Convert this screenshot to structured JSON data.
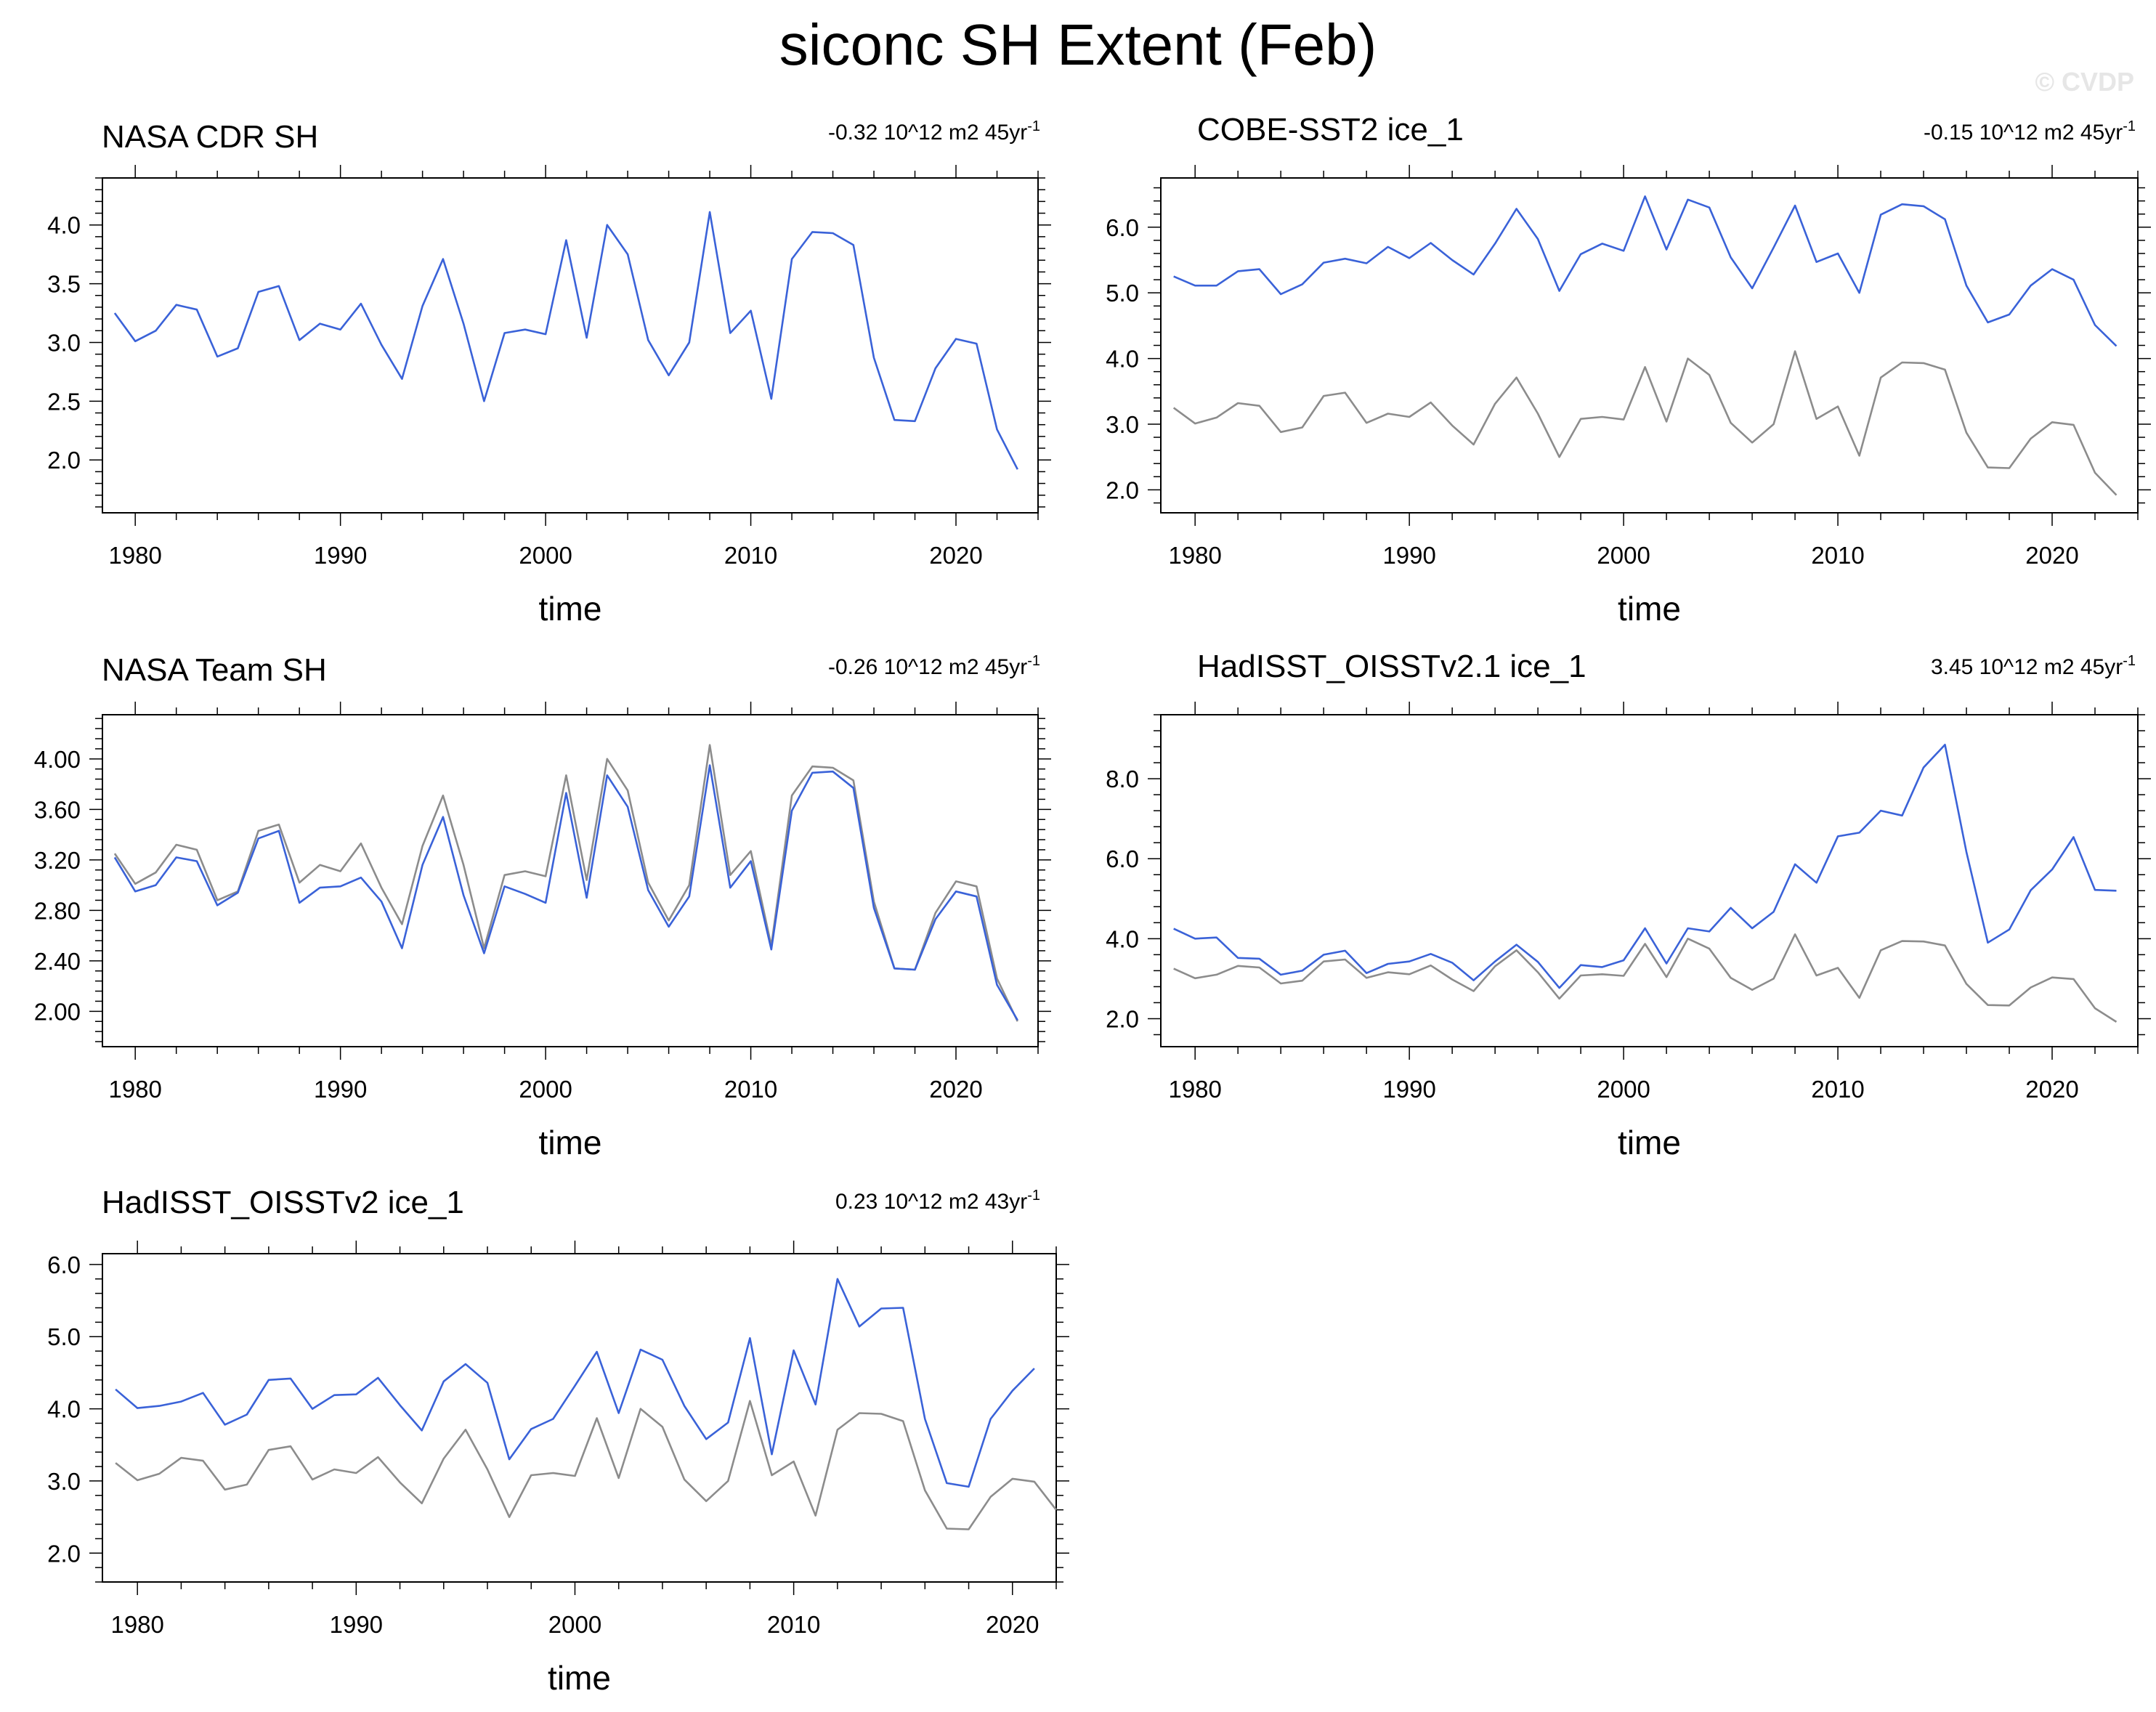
{
  "title": "siconc SH Extent (Feb)",
  "watermark": "© CVDP",
  "colors": {
    "model": "#3a62d8",
    "obs": "#8c8c8c",
    "axis": "#000000"
  },
  "chart_data": [
    {
      "type": "line",
      "title": "NASA CDR SH",
      "trend": {
        "value": "-0.32 10^12 m2 45yr",
        "sup": "-1"
      },
      "xlabel": "time",
      "xlim": [
        1978.4,
        2024
      ],
      "ylim": [
        1.55,
        4.4
      ],
      "xticks": [
        1980,
        1990,
        2000,
        2010,
        2020
      ],
      "yticks": [
        2.0,
        2.5,
        3.0,
        3.5,
        4.0
      ],
      "ytick_labels": [
        "2.0",
        "2.5",
        "3.0",
        "3.5",
        "4.0"
      ],
      "x_start": 1979,
      "series": [
        {
          "role": "model",
          "values": [
            3.25,
            3.01,
            3.1,
            3.32,
            3.28,
            2.88,
            2.95,
            3.43,
            3.48,
            3.02,
            3.16,
            3.11,
            3.33,
            2.98,
            2.69,
            3.31,
            3.71,
            3.16,
            2.5,
            3.08,
            3.11,
            3.07,
            3.87,
            3.04,
            4.0,
            3.75,
            3.02,
            2.72,
            3.0,
            4.11,
            3.08,
            3.27,
            2.52,
            3.71,
            3.94,
            3.93,
            3.83,
            2.87,
            2.34,
            2.33,
            2.78,
            3.03,
            2.99,
            2.26,
            1.92
          ]
        }
      ]
    },
    {
      "type": "line",
      "title": "COBE-SST2 ice_1",
      "trend": {
        "value": "-0.15 10^12 m2 45yr",
        "sup": "-1"
      },
      "xlabel": "time",
      "xlim": [
        1978.4,
        2024
      ],
      "ylim": [
        1.65,
        6.75
      ],
      "xticks": [
        1980,
        1990,
        2000,
        2010,
        2020
      ],
      "yticks": [
        2.0,
        3.0,
        4.0,
        5.0,
        6.0
      ],
      "ytick_labels": [
        "2.0",
        "3.0",
        "4.0",
        "5.0",
        "6.0"
      ],
      "x_start": 1979,
      "series": [
        {
          "role": "obs",
          "values": [
            3.25,
            3.01,
            3.1,
            3.32,
            3.28,
            2.88,
            2.95,
            3.43,
            3.48,
            3.02,
            3.16,
            3.11,
            3.33,
            2.98,
            2.69,
            3.31,
            3.71,
            3.16,
            2.5,
            3.08,
            3.11,
            3.07,
            3.87,
            3.04,
            4.0,
            3.75,
            3.02,
            2.72,
            3.0,
            4.11,
            3.08,
            3.27,
            2.52,
            3.71,
            3.94,
            3.93,
            3.83,
            2.87,
            2.34,
            2.33,
            2.78,
            3.03,
            2.99,
            2.26,
            1.92
          ]
        },
        {
          "role": "model",
          "values": [
            5.25,
            5.11,
            5.11,
            5.33,
            5.36,
            4.98,
            5.13,
            5.46,
            5.52,
            5.45,
            5.7,
            5.53,
            5.76,
            5.5,
            5.28,
            5.75,
            6.28,
            5.82,
            5.03,
            5.59,
            5.75,
            5.64,
            6.47,
            5.66,
            6.42,
            6.3,
            5.54,
            5.07,
            5.69,
            6.33,
            5.47,
            5.6,
            5.0,
            6.19,
            6.35,
            6.32,
            6.12,
            5.11,
            4.55,
            4.67,
            5.11,
            5.36,
            5.2,
            4.51,
            4.19
          ]
        }
      ]
    },
    {
      "type": "line",
      "title": "NASA Team SH",
      "trend": {
        "value": "-0.26 10^12 m2 45yr",
        "sup": "-1"
      },
      "xlabel": "time",
      "xlim": [
        1978.4,
        2024
      ],
      "ylim": [
        1.72,
        4.35
      ],
      "xticks": [
        1980,
        1990,
        2000,
        2010,
        2020
      ],
      "yticks": [
        2.0,
        2.4,
        2.8,
        3.2,
        3.6,
        4.0
      ],
      "ytick_labels": [
        "2.00",
        "2.40",
        "2.80",
        "3.20",
        "3.60",
        "4.00"
      ],
      "x_start": 1979,
      "series": [
        {
          "role": "obs",
          "values": [
            3.25,
            3.01,
            3.1,
            3.32,
            3.28,
            2.88,
            2.95,
            3.43,
            3.48,
            3.02,
            3.16,
            3.11,
            3.33,
            2.98,
            2.69,
            3.31,
            3.71,
            3.16,
            2.5,
            3.08,
            3.11,
            3.07,
            3.87,
            3.04,
            4.0,
            3.75,
            3.02,
            2.72,
            3.0,
            4.11,
            3.08,
            3.27,
            2.52,
            3.71,
            3.94,
            3.93,
            3.83,
            2.87,
            2.34,
            2.33,
            2.78,
            3.03,
            2.99,
            2.26,
            1.92
          ]
        },
        {
          "role": "model",
          "values": [
            3.22,
            2.95,
            3.0,
            3.22,
            3.19,
            2.84,
            2.94,
            3.37,
            3.43,
            2.86,
            2.98,
            2.99,
            3.06,
            2.87,
            2.5,
            3.16,
            3.54,
            2.92,
            2.46,
            2.99,
            2.93,
            2.86,
            3.73,
            2.9,
            3.87,
            3.62,
            2.96,
            2.67,
            2.91,
            3.95,
            2.98,
            3.19,
            2.49,
            3.59,
            3.89,
            3.9,
            3.77,
            2.82,
            2.34,
            2.33,
            2.73,
            2.95,
            2.91,
            2.21,
            1.93
          ]
        }
      ]
    },
    {
      "type": "line",
      "title": "HadISST_OISSTv2.1 ice_1",
      "trend": {
        "value": "3.45 10^12 m2 45yr",
        "sup": "-1"
      },
      "xlabel": "time",
      "xlim": [
        1978.4,
        2024
      ],
      "ylim": [
        1.3,
        9.6
      ],
      "xticks": [
        1980,
        1990,
        2000,
        2010,
        2020
      ],
      "yticks": [
        2.0,
        4.0,
        6.0,
        8.0
      ],
      "ytick_labels": [
        "2.0",
        "4.0",
        "6.0",
        "8.0"
      ],
      "x_start": 1979,
      "series": [
        {
          "role": "obs",
          "values": [
            3.25,
            3.01,
            3.1,
            3.32,
            3.28,
            2.88,
            2.95,
            3.43,
            3.48,
            3.02,
            3.16,
            3.11,
            3.33,
            2.98,
            2.69,
            3.31,
            3.71,
            3.16,
            2.5,
            3.08,
            3.11,
            3.07,
            3.87,
            3.04,
            4.0,
            3.75,
            3.02,
            2.72,
            3.0,
            4.11,
            3.08,
            3.27,
            2.52,
            3.71,
            3.94,
            3.93,
            3.83,
            2.87,
            2.34,
            2.33,
            2.78,
            3.03,
            2.99,
            2.26,
            1.92
          ]
        },
        {
          "role": "model",
          "values": [
            4.25,
            4.0,
            4.03,
            3.52,
            3.5,
            3.1,
            3.2,
            3.6,
            3.7,
            3.14,
            3.37,
            3.43,
            3.62,
            3.4,
            2.96,
            3.43,
            3.85,
            3.42,
            2.77,
            3.34,
            3.29,
            3.46,
            4.26,
            3.38,
            4.26,
            4.18,
            4.77,
            4.26,
            4.67,
            5.86,
            5.4,
            6.56,
            6.65,
            7.2,
            7.08,
            8.28,
            8.85,
            6.17,
            3.9,
            4.23,
            5.21,
            5.73,
            6.54,
            5.22,
            5.2
          ]
        }
      ]
    },
    {
      "type": "line",
      "title": "HadISST_OISSTv2 ice_1",
      "trend": {
        "value": "0.23 10^12 m2 43yr",
        "sup": "-1"
      },
      "xlabel": "time",
      "xlim": [
        1978.4,
        2022
      ],
      "ylim": [
        1.6,
        6.15
      ],
      "xticks": [
        1980,
        1990,
        2000,
        2010,
        2020
      ],
      "yticks": [
        2.0,
        3.0,
        4.0,
        5.0,
        6.0
      ],
      "ytick_labels": [
        "2.0",
        "3.0",
        "4.0",
        "5.0",
        "6.0"
      ],
      "x_start": 1979,
      "series": [
        {
          "role": "obs",
          "values": [
            3.25,
            3.01,
            3.1,
            3.32,
            3.28,
            2.88,
            2.95,
            3.43,
            3.48,
            3.02,
            3.16,
            3.11,
            3.33,
            2.98,
            2.69,
            3.31,
            3.71,
            3.16,
            2.5,
            3.08,
            3.11,
            3.07,
            3.87,
            3.04,
            4.0,
            3.75,
            3.02,
            2.72,
            3.0,
            4.11,
            3.08,
            3.27,
            2.52,
            3.71,
            3.94,
            3.93,
            3.83,
            2.87,
            2.34,
            2.33,
            2.78,
            3.03,
            2.99,
            2.6
          ]
        },
        {
          "role": "model",
          "values": [
            4.27,
            4.01,
            4.04,
            4.1,
            4.22,
            3.78,
            3.92,
            4.4,
            4.42,
            4.0,
            4.19,
            4.2,
            4.43,
            4.05,
            3.7,
            4.38,
            4.62,
            4.36,
            3.3,
            3.72,
            3.86,
            4.32,
            4.79,
            3.94,
            4.82,
            4.68,
            4.04,
            3.58,
            3.81,
            4.98,
            3.37,
            4.81,
            4.06,
            5.8,
            5.14,
            5.39,
            5.4,
            3.86,
            2.97,
            2.92,
            3.86,
            4.25,
            4.56
          ]
        }
      ]
    }
  ]
}
